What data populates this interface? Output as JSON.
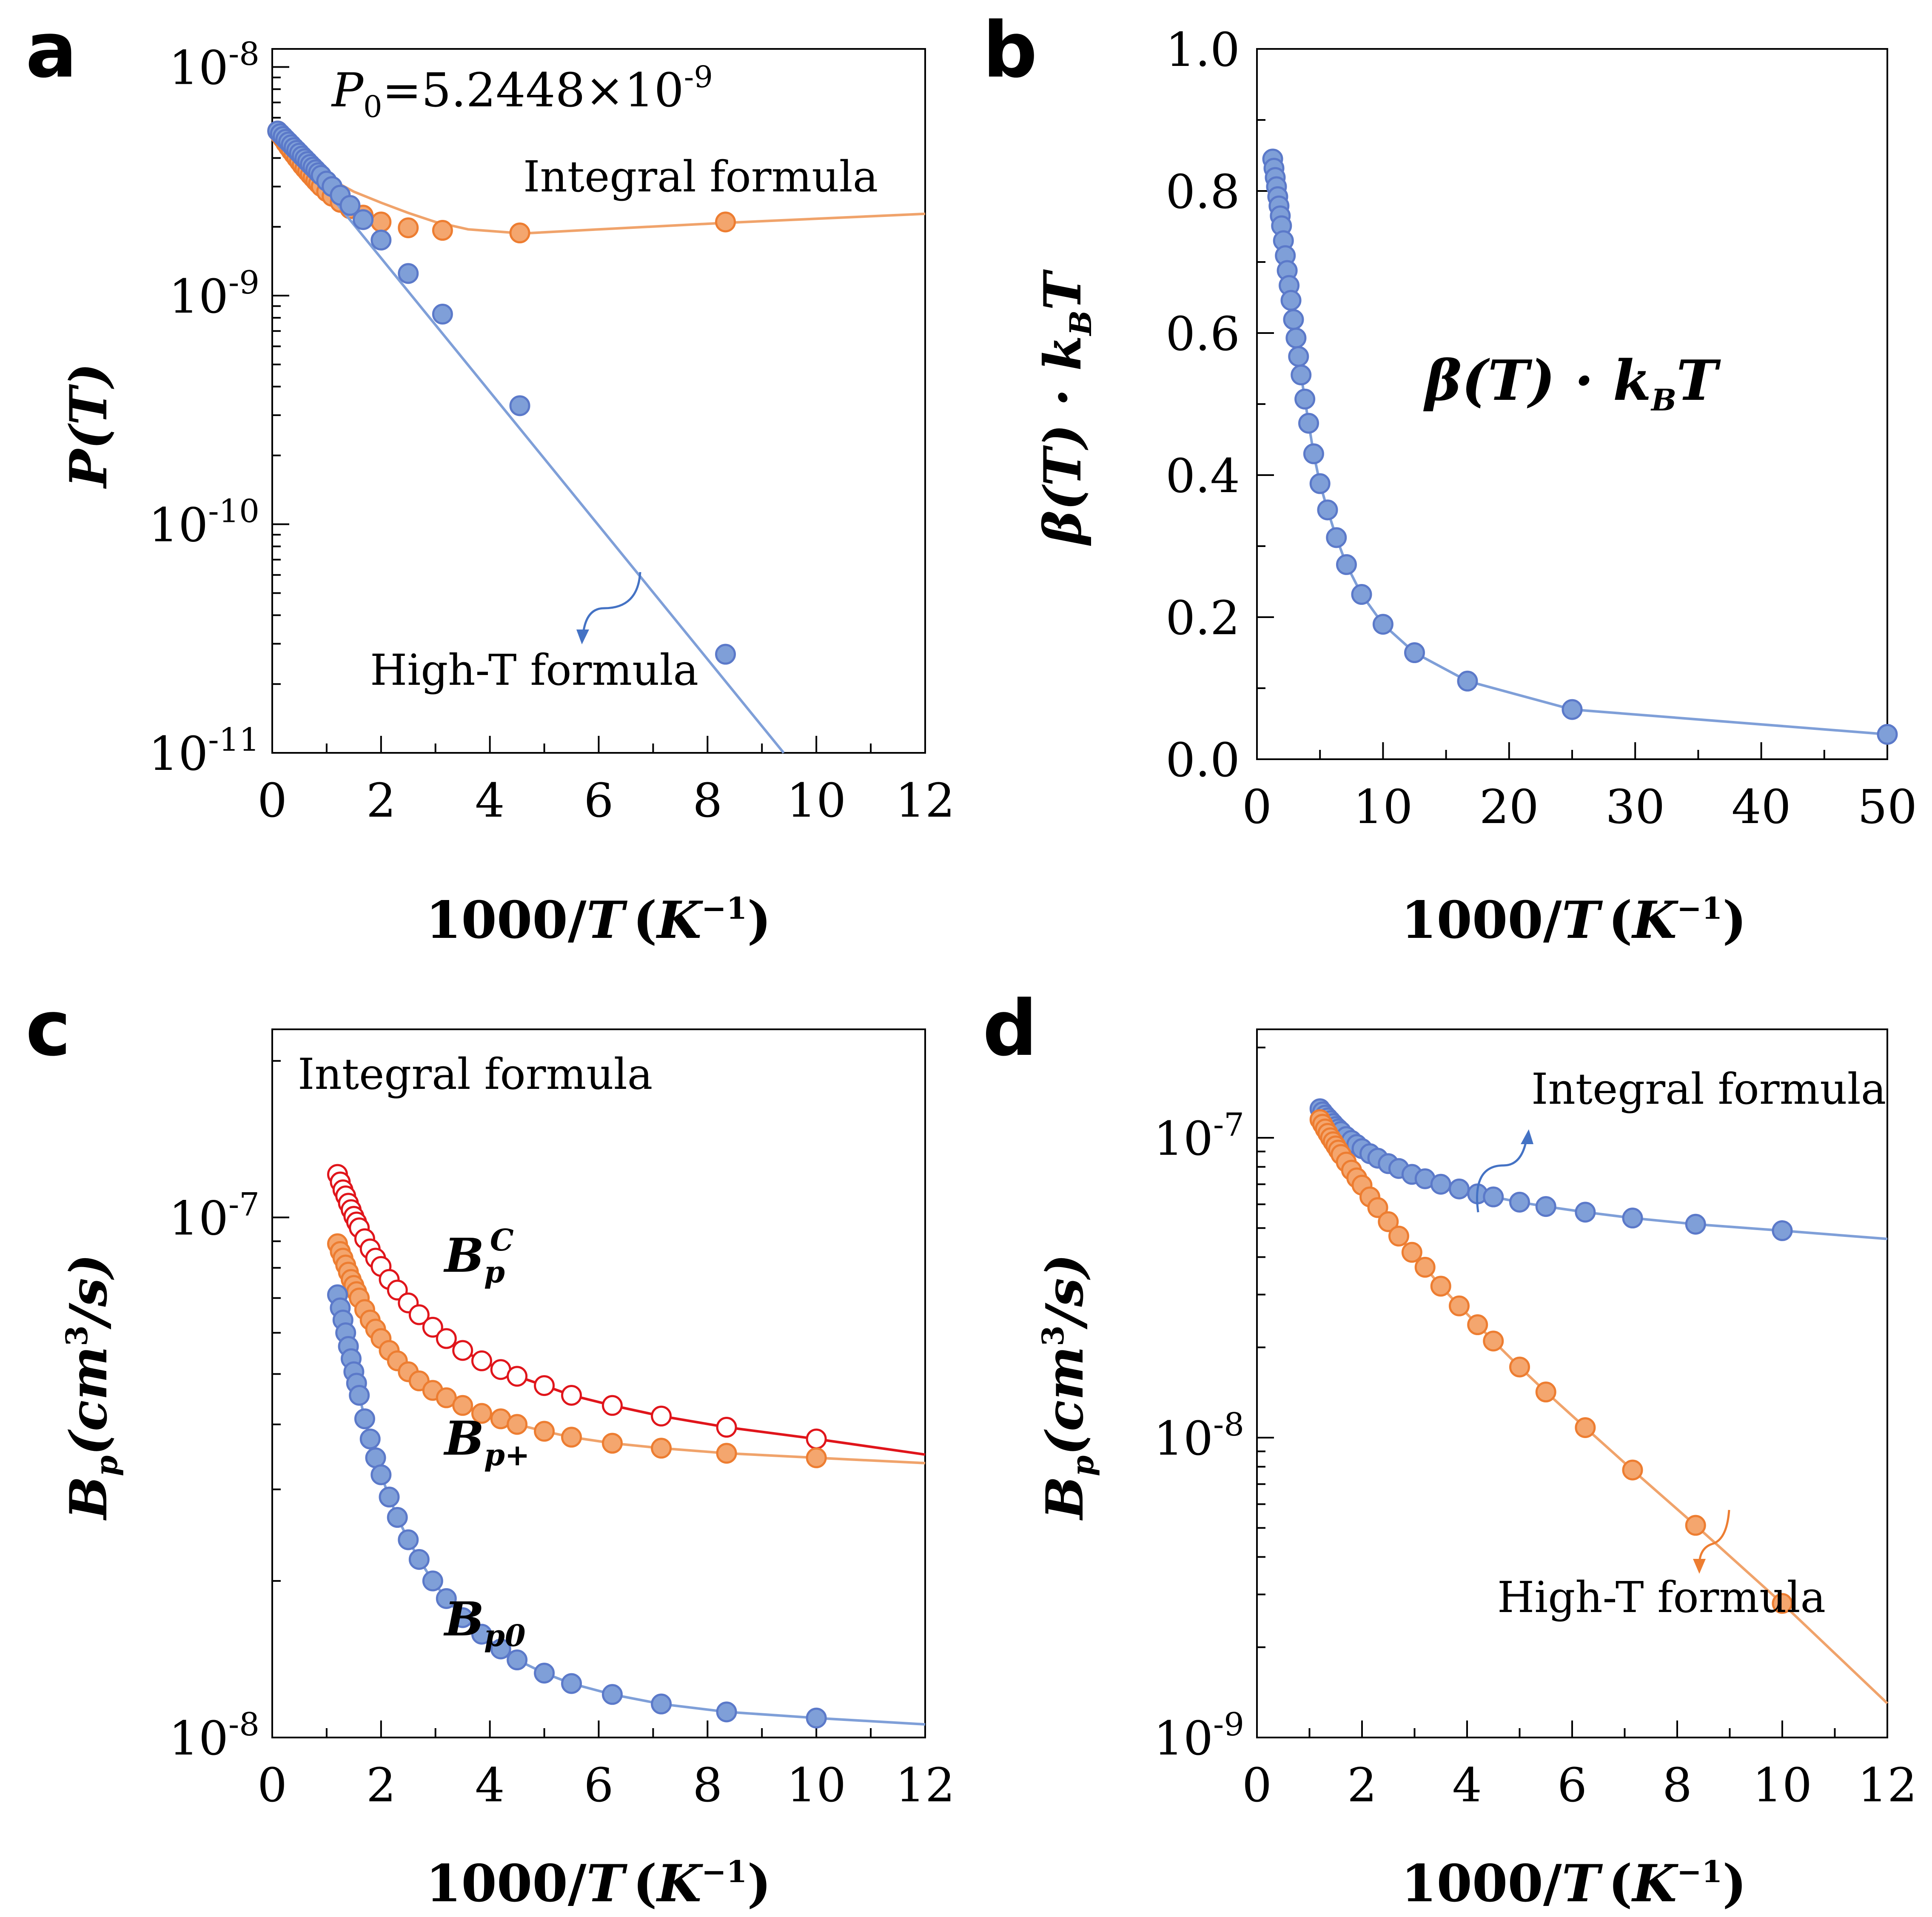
{
  "colors": {
    "blue": "#5B79C9",
    "blue_line": "#7F9FD8",
    "orange": "#ED7D31",
    "orange_fill": "#F4A66E",
    "orange_line": "#F0A36B",
    "red": "#E0151B"
  },
  "chart_data": [
    {
      "id": "a",
      "panel_label": "a",
      "type": "scatter",
      "yscale": "log",
      "xlabel": "1000/T (K⁻¹)",
      "ylabel": "P(T)",
      "xlim": [
        0,
        12
      ],
      "xticks": [
        "0",
        "2",
        "4",
        "6",
        "8",
        "10",
        "12"
      ],
      "ylim": [
        1e-11,
        1.2e-08
      ],
      "yticks": [
        {
          "v": 1e-08,
          "base": "10",
          "exp": "-8"
        },
        {
          "v": 1e-09,
          "base": "10",
          "exp": "-9"
        },
        {
          "v": 1e-10,
          "base": "10",
          "exp": "-10"
        },
        {
          "v": 1e-11,
          "base": "10",
          "exp": "-11"
        }
      ],
      "texts": {
        "p0_var": "P",
        "p0_sub": "0",
        "p0_eq": "=5.2448×10",
        "p0_exp": "-9",
        "integral": "Integral formula",
        "hight": "High-T formula"
      },
      "series": [
        {
          "name": "Integral formula",
          "color": "orange",
          "line_x": [
            0.1,
            0.5,
            1,
            1.5,
            2,
            2.5,
            3,
            3.6,
            4.6,
            6,
            8.3,
            12
          ],
          "line_y": [
            5.25e-09,
            4.2e-09,
            3.3e-09,
            2.85e-09,
            2.55e-09,
            2.3e-09,
            2.1e-09,
            1.95e-09,
            1.87e-09,
            1.95e-09,
            2.08e-09,
            2.28e-09
          ],
          "points_x": [
            0.1,
            0.15,
            0.2,
            0.25,
            0.3,
            0.35,
            0.4,
            0.45,
            0.5,
            0.55,
            0.6,
            0.65,
            0.7,
            0.75,
            0.8,
            0.85,
            0.9,
            1.0,
            1.1,
            1.25,
            1.43,
            1.67,
            2.0,
            2.5,
            3.13,
            4.55,
            8.33
          ],
          "points_y": [
            5.25e-09,
            5.05e-09,
            4.85e-09,
            4.65e-09,
            4.47e-09,
            4.3e-09,
            4.15e-09,
            4e-09,
            3.86e-09,
            3.72e-09,
            3.6e-09,
            3.49e-09,
            3.38e-09,
            3.28e-09,
            3.18e-09,
            3.09e-09,
            3e-09,
            2.85e-09,
            2.72e-09,
            2.56e-09,
            2.4e-09,
            2.25e-09,
            2.1e-09,
            1.98e-09,
            1.93e-09,
            1.88e-09,
            2.1e-09
          ]
        },
        {
          "name": "High-T formula",
          "color": "blue",
          "line_x": [
            0.1,
            9.4
          ],
          "line_y": [
            5.25e-09,
            1e-11
          ],
          "points_x": [
            0.1,
            0.15,
            0.2,
            0.25,
            0.3,
            0.35,
            0.4,
            0.45,
            0.5,
            0.55,
            0.6,
            0.65,
            0.7,
            0.75,
            0.8,
            0.85,
            0.9,
            1.0,
            1.1,
            1.25,
            1.43,
            1.67,
            2.0,
            2.5,
            3.13,
            4.55,
            8.33
          ],
          "points_y": [
            5.25e-09,
            5.11e-09,
            4.97e-09,
            4.83e-09,
            4.7e-09,
            4.57e-09,
            4.44e-09,
            4.32e-09,
            4.2e-09,
            4.08e-09,
            3.97e-09,
            3.86e-09,
            3.75e-09,
            3.65e-09,
            3.55e-09,
            3.45e-09,
            3.36e-09,
            3.17e-09,
            3e-09,
            2.75e-09,
            2.48e-09,
            2.15e-09,
            1.75e-09,
            1.25e-09,
            8.3e-10,
            3.3e-10,
            2.7e-11
          ]
        }
      ]
    },
    {
      "id": "b",
      "panel_label": "b",
      "type": "scatter",
      "yscale": "linear",
      "xlabel": "1000/T (K⁻¹)",
      "ylabel": "β(T) · k_B T",
      "xlim": [
        0,
        50
      ],
      "xticks": [
        "0",
        "10",
        "20",
        "30",
        "40",
        "50"
      ],
      "xtick_values": [
        0,
        10,
        20,
        30,
        40,
        50
      ],
      "ylim": [
        0,
        1.0
      ],
      "yticks": [
        "0.0",
        "0.2",
        "0.4",
        "0.6",
        "0.8",
        "1.0"
      ],
      "ytick_values": [
        0,
        0.2,
        0.4,
        0.6,
        0.8,
        1.0
      ],
      "texts": {
        "beta": "β(T) · k",
        "beta_sub": "B",
        "beta_t": "T"
      },
      "series": [
        {
          "name": "β(T)·kBT",
          "color": "blue",
          "x": [
            1.25,
            1.35,
            1.45,
            1.55,
            1.65,
            1.75,
            1.85,
            1.95,
            2.1,
            2.25,
            2.4,
            2.55,
            2.7,
            2.9,
            3.1,
            3.3,
            3.5,
            3.8,
            4.1,
            4.5,
            5.0,
            5.6,
            6.3,
            7.1,
            8.3,
            10.0,
            12.5,
            16.7,
            25.0,
            50.0
          ],
          "y": [
            0.845,
            0.832,
            0.819,
            0.806,
            0.792,
            0.779,
            0.765,
            0.751,
            0.73,
            0.709,
            0.688,
            0.667,
            0.646,
            0.619,
            0.593,
            0.567,
            0.541,
            0.507,
            0.473,
            0.43,
            0.388,
            0.351,
            0.312,
            0.274,
            0.232,
            0.19,
            0.15,
            0.11,
            0.07,
            0.035
          ]
        }
      ]
    },
    {
      "id": "c",
      "panel_label": "c",
      "type": "scatter",
      "yscale": "log",
      "xlabel": "1000/T (K⁻¹)",
      "ylabel": "B_p (cm³/s)",
      "xlim": [
        0,
        12
      ],
      "xticks": [
        "0",
        "2",
        "4",
        "6",
        "8",
        "10",
        "12"
      ],
      "ylim": [
        1e-08,
        2.3e-07
      ],
      "yticks": [
        {
          "v": 1e-07,
          "base": "10",
          "exp": "-7"
        },
        {
          "v": 1e-08,
          "base": "10",
          "exp": "-8"
        }
      ],
      "texts": {
        "integral": "Integral formula",
        "bpc": "B",
        "bpc_sub": "p",
        "bpc_sup": "C",
        "bpp": "B",
        "bpp_sub": "p+",
        "bp0": "B",
        "bp0_sub": "p0"
      },
      "series": [
        {
          "name": "B_p^C",
          "color": "red",
          "hollow": true,
          "x": [
            1.2,
            1.25,
            1.3,
            1.35,
            1.4,
            1.45,
            1.5,
            1.55,
            1.6,
            1.7,
            1.8,
            1.9,
            2.0,
            2.15,
            2.3,
            2.5,
            2.7,
            2.95,
            3.2,
            3.5,
            3.85,
            4.2,
            4.5,
            5.0,
            5.5,
            6.25,
            7.15,
            8.35,
            10.0
          ],
          "y": [
            1.21e-07,
            1.17e-07,
            1.13e-07,
            1.1e-07,
            1.065e-07,
            1.035e-07,
            1.005e-07,
            9.8e-08,
            9.55e-08,
            9.1e-08,
            8.7e-08,
            8.35e-08,
            8.05e-08,
            7.6e-08,
            7.25e-08,
            6.85e-08,
            6.5e-08,
            6.15e-08,
            5.85e-08,
            5.55e-08,
            5.3e-08,
            5.1e-08,
            4.95e-08,
            4.75e-08,
            4.55e-08,
            4.35e-08,
            4.15e-08,
            3.95e-08,
            3.75e-08
          ],
          "end_x": 12,
          "end_y": 3.5e-08
        },
        {
          "name": "B_p+",
          "color": "orange",
          "x": [
            1.2,
            1.25,
            1.3,
            1.35,
            1.4,
            1.45,
            1.5,
            1.55,
            1.6,
            1.7,
            1.8,
            1.9,
            2.0,
            2.15,
            2.3,
            2.5,
            2.7,
            2.95,
            3.2,
            3.5,
            3.85,
            4.2,
            4.5,
            5.0,
            5.5,
            6.25,
            7.15,
            8.35,
            10.0
          ],
          "y": [
            8.9e-08,
            8.6e-08,
            8.35e-08,
            8.1e-08,
            7.85e-08,
            7.6e-08,
            7.4e-08,
            7.2e-08,
            7e-08,
            6.65e-08,
            6.35e-08,
            6.1e-08,
            5.85e-08,
            5.55e-08,
            5.3e-08,
            5.05e-08,
            4.85e-08,
            4.65e-08,
            4.5e-08,
            4.35e-08,
            4.2e-08,
            4.1e-08,
            4e-08,
            3.88e-08,
            3.78e-08,
            3.68e-08,
            3.6e-08,
            3.52e-08,
            3.45e-08
          ],
          "end_x": 12,
          "end_y": 3.37e-08
        },
        {
          "name": "B_p0",
          "color": "blue",
          "x": [
            1.2,
            1.25,
            1.3,
            1.35,
            1.4,
            1.45,
            1.5,
            1.55,
            1.6,
            1.7,
            1.8,
            1.9,
            2.0,
            2.15,
            2.3,
            2.5,
            2.7,
            2.95,
            3.2,
            3.5,
            3.85,
            4.2,
            4.5,
            5.0,
            5.5,
            6.25,
            7.15,
            8.35,
            10.0
          ],
          "y": [
            7.1e-08,
            6.7e-08,
            6.35e-08,
            6e-08,
            5.65e-08,
            5.35e-08,
            5.05e-08,
            4.8e-08,
            4.55e-08,
            4.1e-08,
            3.75e-08,
            3.45e-08,
            3.2e-08,
            2.9e-08,
            2.65e-08,
            2.4e-08,
            2.2e-08,
            2e-08,
            1.85e-08,
            1.7e-08,
            1.58e-08,
            1.48e-08,
            1.41e-08,
            1.33e-08,
            1.27e-08,
            1.21e-08,
            1.16e-08,
            1.12e-08,
            1.09e-08
          ],
          "end_x": 12,
          "end_y": 1.06e-08
        }
      ]
    },
    {
      "id": "d",
      "panel_label": "d",
      "type": "scatter",
      "yscale": "log",
      "xlabel": "1000/T (K⁻¹)",
      "ylabel": "B_p (cm³/s)",
      "xlim": [
        0,
        12
      ],
      "xticks": [
        "0",
        "2",
        "4",
        "6",
        "8",
        "10",
        "12"
      ],
      "ylim": [
        1e-09,
        2.3e-07
      ],
      "yticks": [
        {
          "v": 1e-07,
          "base": "10",
          "exp": "-7"
        },
        {
          "v": 1e-08,
          "base": "10",
          "exp": "-8"
        },
        {
          "v": 1e-09,
          "base": "10",
          "exp": "-9"
        }
      ],
      "texts": {
        "integral": "Integral formula",
        "hight": "High-T formula"
      },
      "series": [
        {
          "name": "Integral formula",
          "color": "blue",
          "x": [
            1.2,
            1.25,
            1.3,
            1.35,
            1.4,
            1.45,
            1.5,
            1.55,
            1.6,
            1.7,
            1.8,
            1.9,
            2.0,
            2.15,
            2.3,
            2.5,
            2.7,
            2.95,
            3.2,
            3.5,
            3.85,
            4.2,
            4.5,
            5.0,
            5.5,
            6.25,
            7.15,
            8.35,
            10.0
          ],
          "y": [
            1.25e-07,
            1.22e-07,
            1.19e-07,
            1.165e-07,
            1.14e-07,
            1.115e-07,
            1.09e-07,
            1.07e-07,
            1.05e-07,
            1.01e-07,
            9.8e-08,
            9.5e-08,
            9.2e-08,
            8.85e-08,
            8.55e-08,
            8.2e-08,
            7.9e-08,
            7.55e-08,
            7.3e-08,
            7e-08,
            6.75e-08,
            6.5e-08,
            6.35e-08,
            6.1e-08,
            5.9e-08,
            5.65e-08,
            5.4e-08,
            5.15e-08,
            4.9e-08
          ],
          "end_x": 12,
          "end_y": 4.6e-08
        },
        {
          "name": "High-T formula",
          "color": "orange",
          "x": [
            1.2,
            1.25,
            1.3,
            1.35,
            1.4,
            1.45,
            1.5,
            1.55,
            1.6,
            1.7,
            1.8,
            1.9,
            2.0,
            2.15,
            2.3,
            2.5,
            2.7,
            2.95,
            3.2,
            3.5,
            3.85,
            4.2,
            4.5,
            5.0,
            5.5,
            6.25,
            7.15,
            8.35,
            10.0
          ],
          "y": [
            1.15e-07,
            1.11e-07,
            1.07e-07,
            1.035e-07,
            1e-07,
            9.7e-08,
            9.4e-08,
            9.1e-08,
            8.8e-08,
            8.3e-08,
            7.8e-08,
            7.35e-08,
            6.95e-08,
            6.35e-08,
            5.85e-08,
            5.25e-08,
            4.7e-08,
            4.15e-08,
            3.7e-08,
            3.2e-08,
            2.75e-08,
            2.38e-08,
            2.1e-08,
            1.72e-08,
            1.42e-08,
            1.08e-08,
            7.8e-09,
            5.1e-09,
            2.8e-09
          ],
          "end_x": 12,
          "end_y": 1.3e-09
        }
      ]
    }
  ],
  "shared": {
    "xlabel_main": "1000/",
    "xlabel_T": "T",
    "xlabel_unit": "K",
    "xlabel_exp": "−1",
    "ylabel_P": "P(T)",
    "ylabel_B": "B",
    "ylabel_B_sub": "p",
    "ylabel_B_unit": "(cm",
    "ylabel_B_sup": "3",
    "ylabel_B_tail": "/s)"
  }
}
